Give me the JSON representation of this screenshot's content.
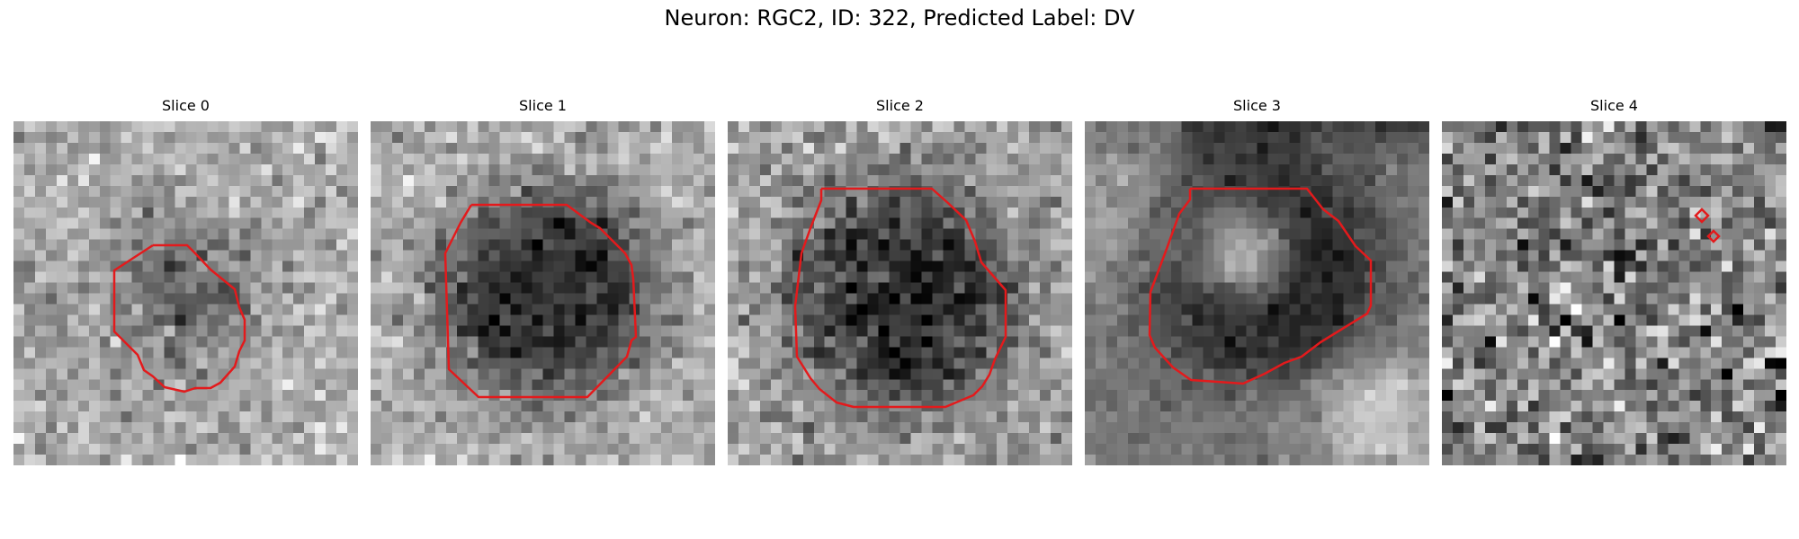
{
  "figure": {
    "title": "Neuron: RGC2, ID: 322, Predicted Label: DV"
  },
  "panels": [
    {
      "title": "Slice 0",
      "image": "grayscale-microscopy-slice",
      "style": "noisy-bright-dark-blob",
      "contour_color": "#e31a1c"
    },
    {
      "title": "Slice 1",
      "image": "grayscale-microscopy-slice",
      "style": "large-dark-blob",
      "contour_color": "#e31a1c"
    },
    {
      "title": "Slice 2",
      "image": "grayscale-microscopy-slice",
      "style": "large-dark-blob",
      "contour_color": "#e31a1c"
    },
    {
      "title": "Slice 3",
      "image": "grayscale-microscopy-slice",
      "style": "bright-nucleus-dark-ring",
      "contour_color": "#e31a1c"
    },
    {
      "title": "Slice 4",
      "image": "grayscale-microscopy-slice",
      "style": "pure-noise",
      "contour_color": "#e31a1c"
    }
  ]
}
